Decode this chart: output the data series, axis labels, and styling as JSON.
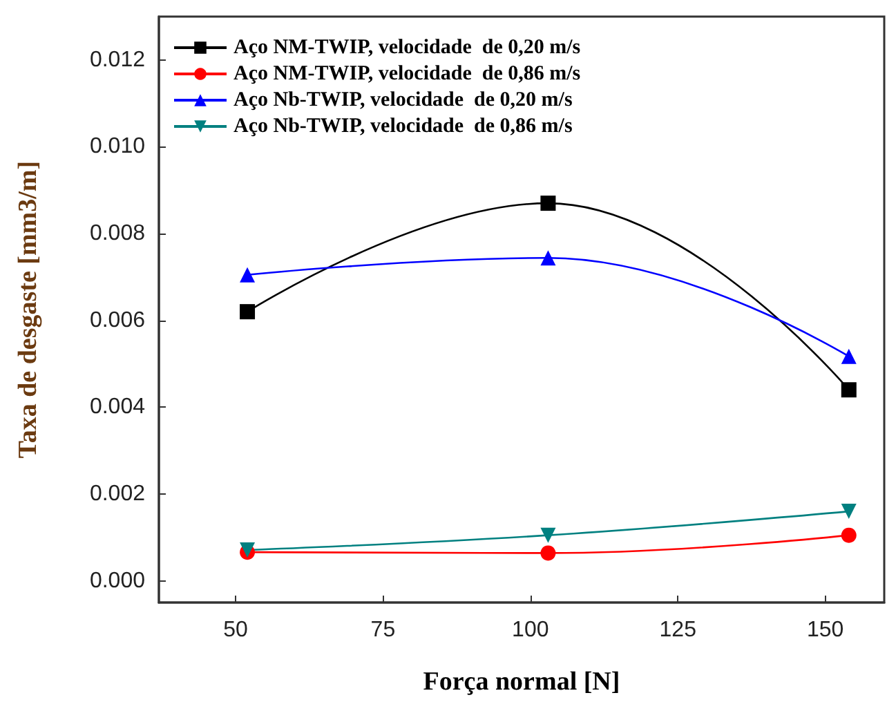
{
  "chart_data": {
    "type": "line",
    "xlabel": "Força normal [N]",
    "ylabel": "Taxa de desgaste [mm3/m]",
    "x": [
      52,
      103,
      154
    ],
    "series": [
      {
        "name": "Aço NM-TWIP, velocidade  de 0,20 m/s",
        "color": "#000000",
        "marker": "square",
        "values": [
          0.0062,
          0.0087,
          0.0044
        ]
      },
      {
        "name": "Aço NM-TWIP, velocidade  de 0,86 m/s",
        "color": "#ff0000",
        "marker": "circle",
        "values": [
          0.00066,
          0.00064,
          0.00105
        ]
      },
      {
        "name": "Aço Nb-TWIP, velocidade  de 0,20 m/s",
        "color": "#0000ff",
        "marker": "triangle",
        "values": [
          0.00705,
          0.00744,
          0.00517
        ]
      },
      {
        "name": "Aço Nb-TWIP, velocidade  de 0,86 m/s",
        "color": "#008080",
        "marker": "triangle-down",
        "values": [
          0.00071,
          0.00105,
          0.0016
        ]
      }
    ],
    "xlim": [
      37,
      160
    ],
    "xticks": [
      50,
      75,
      100,
      125,
      150
    ],
    "ylim": [
      -0.0005,
      0.013
    ],
    "yticks": [
      {
        "value": 0,
        "label": "0.000"
      },
      {
        "value": 0.002,
        "label": "0.002"
      },
      {
        "value": 0.004,
        "label": "0.004"
      },
      {
        "value": 0.006,
        "label": "0.006"
      },
      {
        "value": 0.008,
        "label": "0.008"
      },
      {
        "value": 0.01,
        "label": "0.010"
      },
      {
        "value": 0.012,
        "label": "0.012"
      }
    ],
    "grid": false,
    "legend": "top left"
  }
}
